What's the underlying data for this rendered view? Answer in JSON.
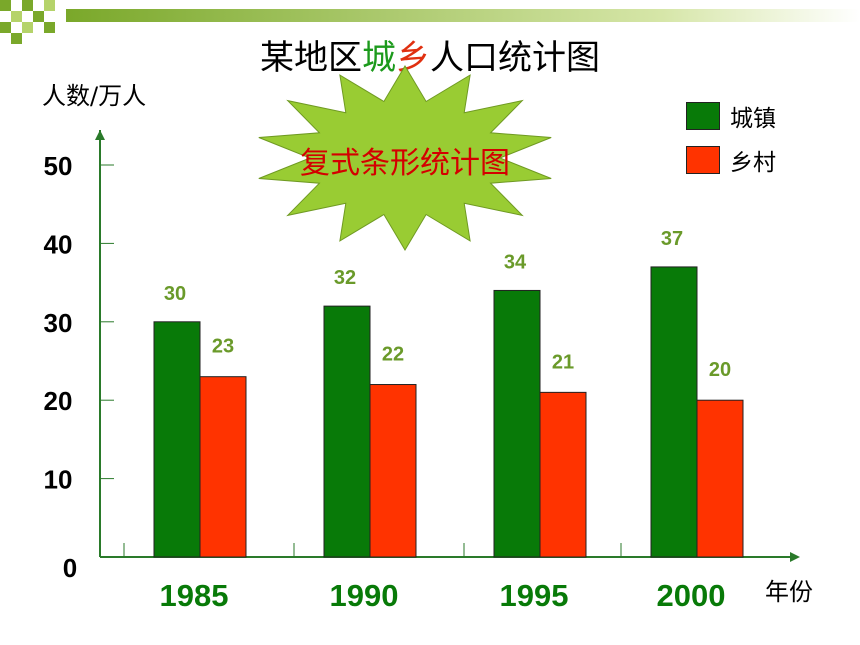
{
  "title": {
    "part1": "某地区",
    "part2": "城",
    "part3": "乡",
    "part4": "人口统计图",
    "colors": {
      "normal": "#000000",
      "cheng": "#1c9a1c",
      "xiang": "#e03010"
    }
  },
  "badge": {
    "text": "复式条形统计图",
    "fill": "#99cc33",
    "text_color": "#d40000"
  },
  "chart_data": {
    "type": "bar",
    "categories": [
      "1985",
      "1990",
      "1995",
      "2000"
    ],
    "series": [
      {
        "name": "城镇",
        "values": [
          30,
          32,
          34,
          37
        ],
        "color": "#087a08"
      },
      {
        "name": "乡村",
        "values": [
          23,
          22,
          21,
          20
        ],
        "color": "#ff3300"
      }
    ],
    "ylabel": "人数/万人",
    "xlabel": "年份",
    "ylim": [
      0,
      50
    ],
    "yticks": [
      0,
      10,
      20,
      30,
      40,
      50
    ],
    "data_label_color": "#6a9a2a",
    "legend_position": "top-right",
    "grid": false
  }
}
